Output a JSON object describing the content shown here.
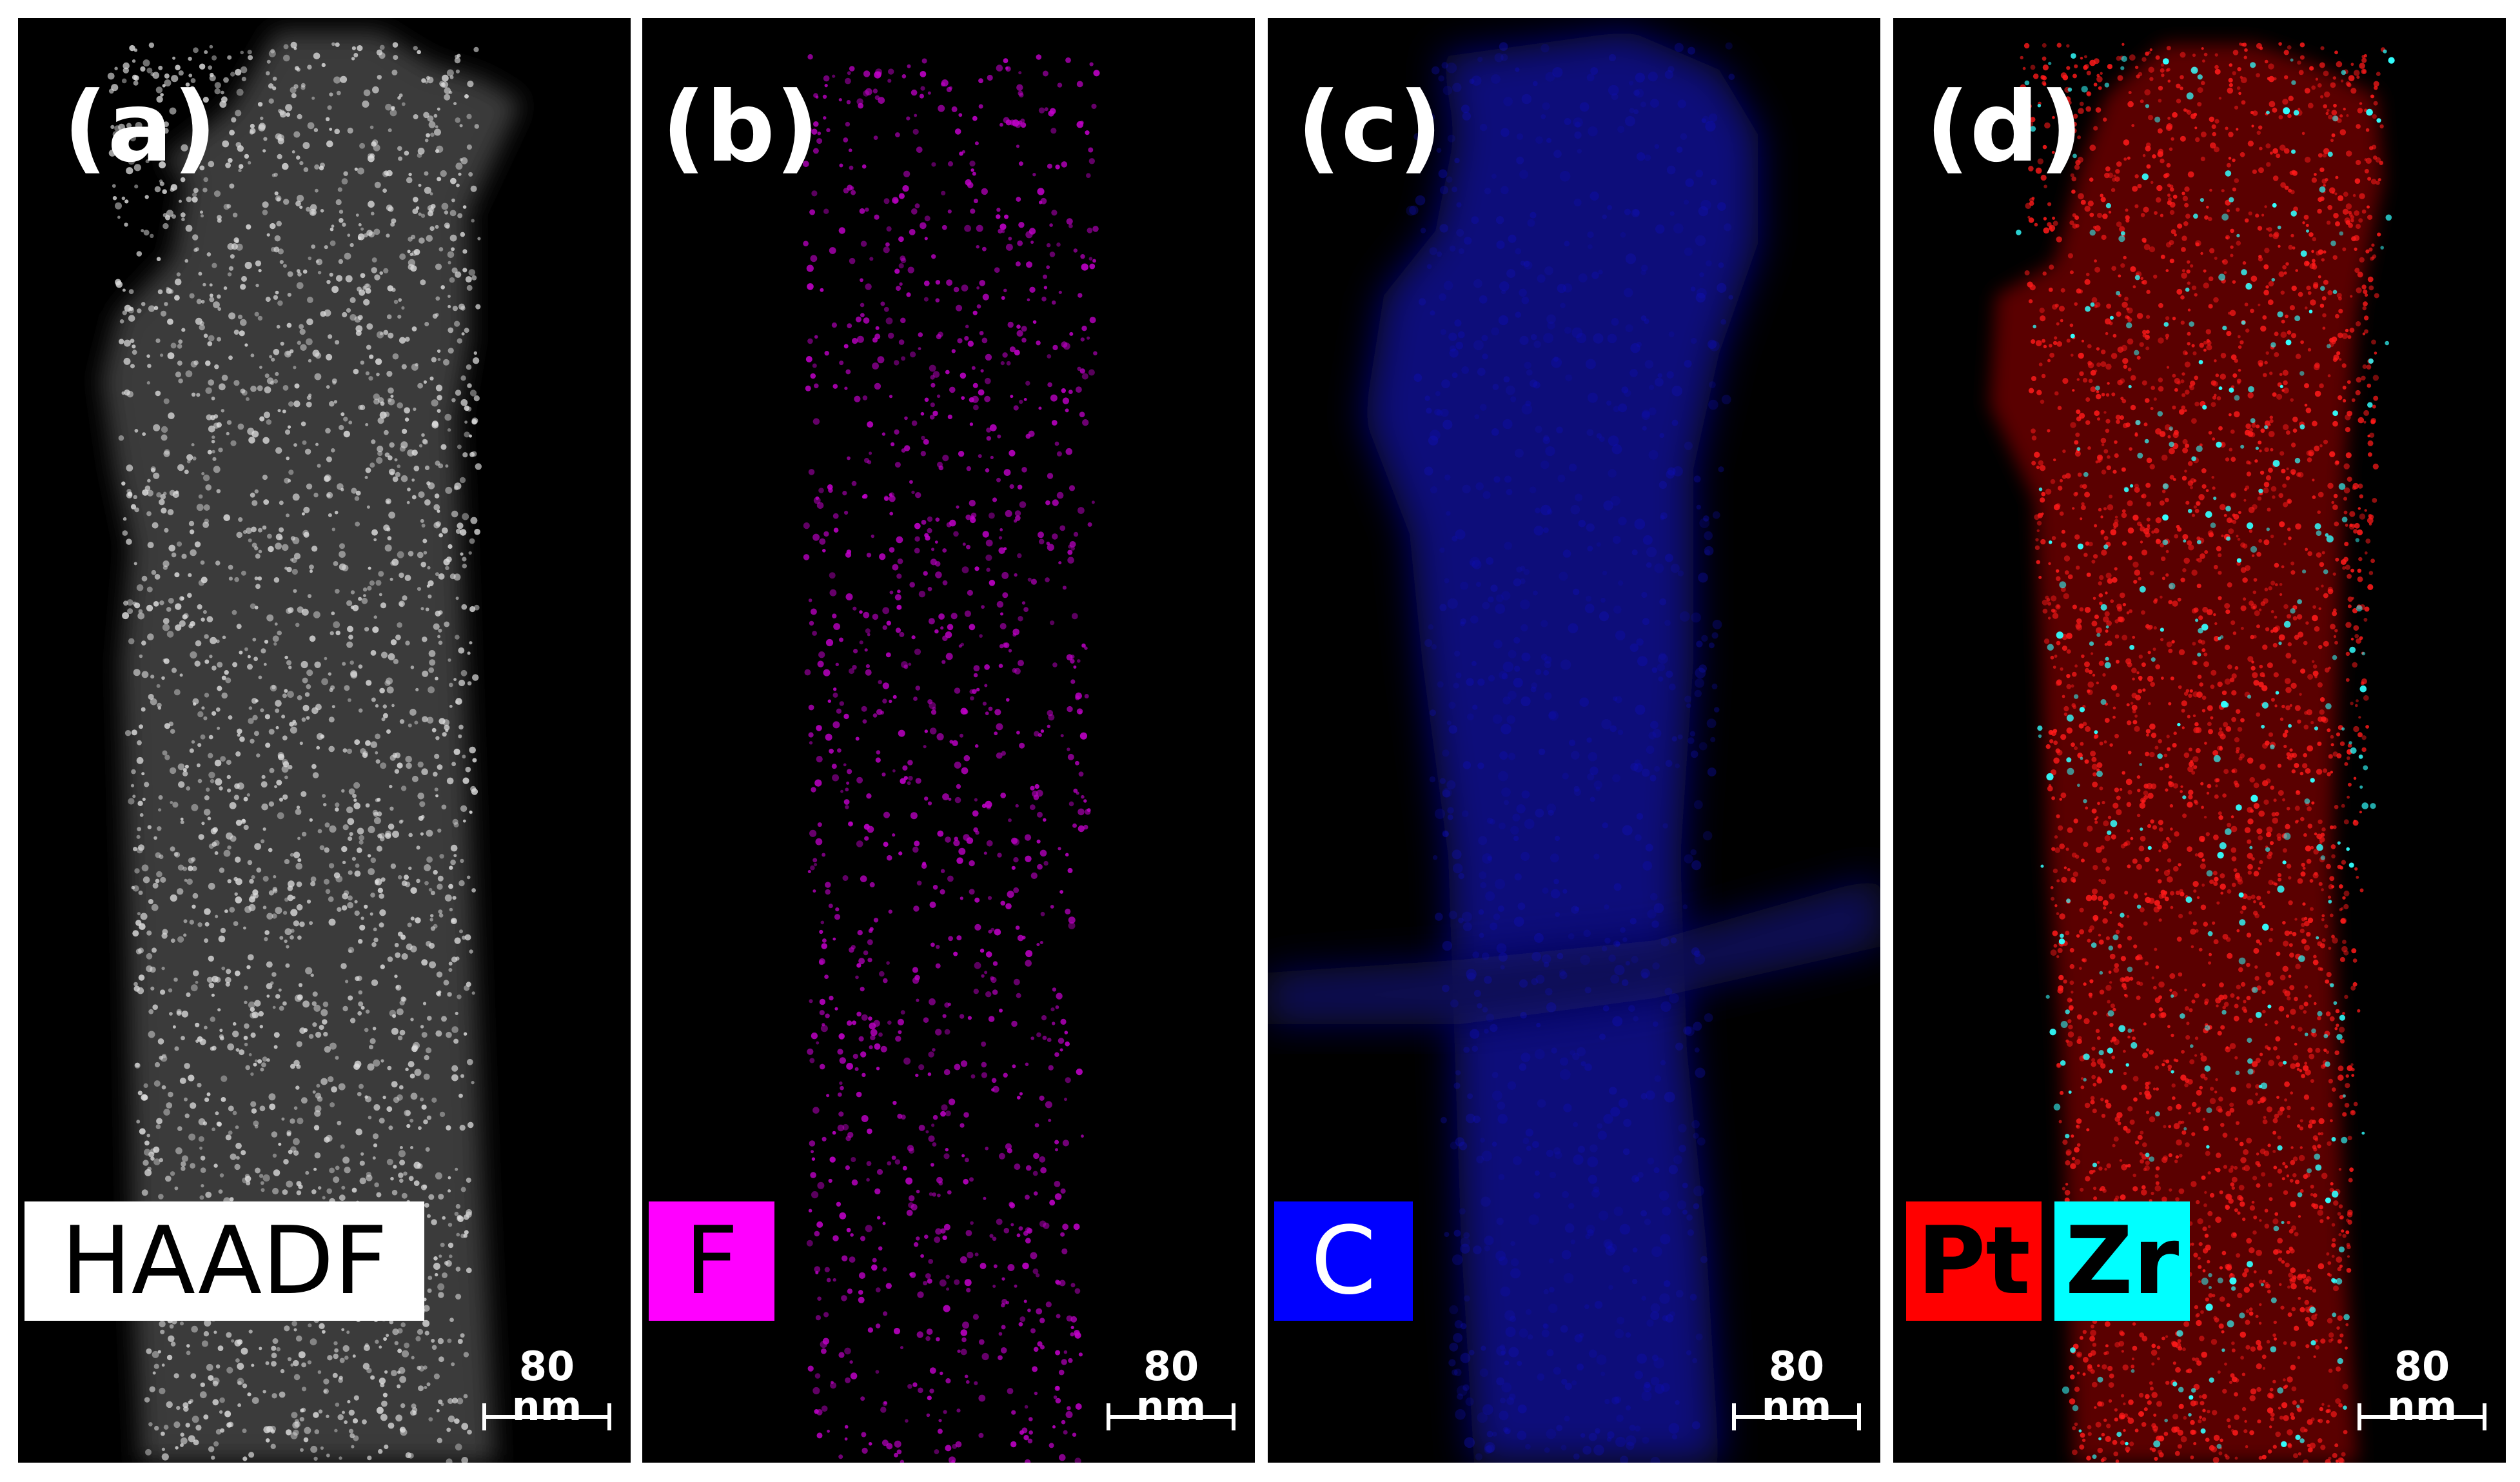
{
  "panels": [
    {
      "label": "(a)",
      "scale_label": "80 nm",
      "channels": [
        {
          "text": "HAADF",
          "bg": "#ffffff",
          "fg": "#000000"
        }
      ]
    },
    {
      "label": "(b)",
      "scale_label": "80 nm",
      "channels": [
        {
          "text": "F",
          "bg": "#ff00ff",
          "fg": "#000000"
        }
      ]
    },
    {
      "label": "(c)",
      "scale_label": "80 nm",
      "channels": [
        {
          "text": "C",
          "bg": "#0000ff",
          "fg": "#ffffff"
        }
      ]
    },
    {
      "label": "(d)",
      "scale_label": "80 nm",
      "channels": [
        {
          "text": "Pt",
          "bg": "#ff0000",
          "fg": "#000000"
        },
        {
          "text": "Zr",
          "bg": "#00ffff",
          "fg": "#000000"
        }
      ]
    }
  ],
  "colors": {
    "haadf": "#dddddd",
    "fluorine": "#c000c8",
    "carbon": "#1010c0",
    "platinum": "#ff1a1a",
    "zirconium": "#33ffff"
  }
}
